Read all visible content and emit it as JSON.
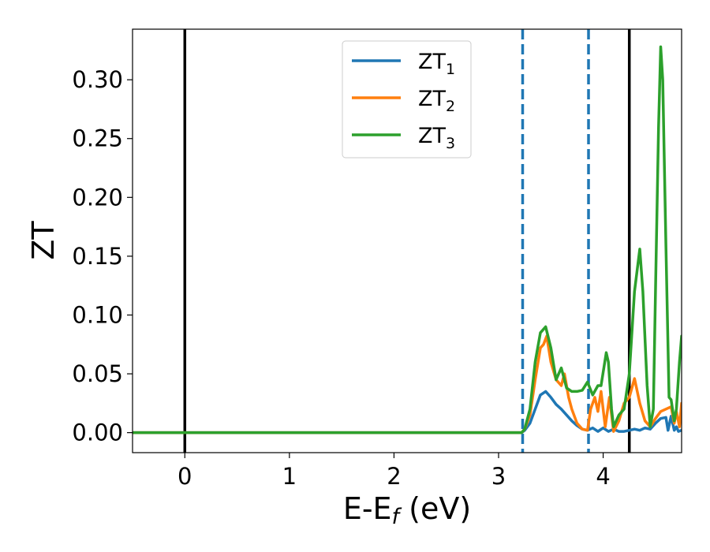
{
  "chart_data": {
    "type": "line",
    "title": "",
    "xlabel": {
      "base": "E-E",
      "sub": "f",
      "suffix": " (eV)"
    },
    "ylabel": "ZT",
    "xlim": [
      -0.5,
      4.75
    ],
    "ylim": [
      -0.017,
      0.343
    ],
    "xticks": [
      0,
      1,
      2,
      3,
      4
    ],
    "xtick_labels": [
      "0",
      "1",
      "2",
      "3",
      "4"
    ],
    "yticks": [
      0.0,
      0.05,
      0.1,
      0.15,
      0.2,
      0.25,
      0.3
    ],
    "ytick_labels": [
      "0.00",
      "0.05",
      "0.10",
      "0.15",
      "0.20",
      "0.25",
      "0.30"
    ],
    "grid": false,
    "legend_position": "top-center",
    "vlines": [
      {
        "x": 0.0,
        "style": "solid",
        "color": "#000000"
      },
      {
        "x": 4.25,
        "style": "solid",
        "color": "#000000"
      },
      {
        "x": 3.23,
        "style": "dashed",
        "color": "#1f77b4"
      },
      {
        "x": 3.86,
        "style": "dashed",
        "color": "#1f77b4"
      }
    ],
    "series": [
      {
        "name": "ZT",
        "sub": "1",
        "color": "#1f77b4",
        "x": [
          -0.5,
          3.15,
          3.22,
          3.25,
          3.3,
          3.35,
          3.4,
          3.45,
          3.5,
          3.55,
          3.6,
          3.65,
          3.7,
          3.75,
          3.8,
          3.85,
          3.9,
          3.95,
          4.0,
          4.05,
          4.1,
          4.15,
          4.2,
          4.25,
          4.3,
          4.35,
          4.4,
          4.45,
          4.5,
          4.55,
          4.6,
          4.62,
          4.65,
          4.68,
          4.7,
          4.72,
          4.75
        ],
        "y": [
          0.0,
          0.0,
          0.0,
          0.002,
          0.008,
          0.02,
          0.032,
          0.035,
          0.03,
          0.024,
          0.02,
          0.015,
          0.01,
          0.006,
          0.003,
          0.002,
          0.004,
          0.001,
          0.004,
          0.001,
          0.003,
          0.001,
          0.001,
          0.002,
          0.003,
          0.002,
          0.004,
          0.003,
          0.008,
          0.012,
          0.013,
          0.002,
          0.014,
          0.002,
          0.005,
          0.001,
          0.002
        ]
      },
      {
        "name": "ZT",
        "sub": "2",
        "color": "#ff7f0e",
        "x": [
          -0.5,
          3.15,
          3.22,
          3.25,
          3.3,
          3.35,
          3.4,
          3.43,
          3.46,
          3.5,
          3.55,
          3.6,
          3.63,
          3.67,
          3.7,
          3.75,
          3.8,
          3.85,
          3.88,
          3.92,
          3.95,
          3.98,
          4.02,
          4.06,
          4.1,
          4.15,
          4.2,
          4.25,
          4.3,
          4.35,
          4.4,
          4.45,
          4.5,
          4.55,
          4.6,
          4.65,
          4.68,
          4.7,
          4.73,
          4.75
        ],
        "y": [
          0.0,
          0.0,
          0.0,
          0.003,
          0.015,
          0.045,
          0.072,
          0.075,
          0.082,
          0.06,
          0.045,
          0.04,
          0.05,
          0.03,
          0.02,
          0.008,
          0.003,
          0.002,
          0.02,
          0.03,
          0.018,
          0.035,
          0.005,
          0.03,
          0.001,
          0.01,
          0.025,
          0.03,
          0.046,
          0.025,
          0.01,
          0.005,
          0.012,
          0.018,
          0.02,
          0.022,
          0.008,
          0.018,
          0.005,
          0.025
        ]
      },
      {
        "name": "ZT",
        "sub": "3",
        "color": "#2ca02c",
        "x": [
          -0.5,
          3.1,
          3.22,
          3.25,
          3.3,
          3.35,
          3.4,
          3.45,
          3.5,
          3.55,
          3.6,
          3.65,
          3.7,
          3.75,
          3.8,
          3.85,
          3.9,
          3.95,
          3.98,
          4.03,
          4.05,
          4.08,
          4.1,
          4.15,
          4.2,
          4.25,
          4.3,
          4.35,
          4.38,
          4.42,
          4.45,
          4.48,
          4.5,
          4.53,
          4.55,
          4.57,
          4.6,
          4.63,
          4.65,
          4.68,
          4.7,
          4.73,
          4.75
        ],
        "y": [
          0.0,
          0.0,
          0.0,
          0.003,
          0.02,
          0.06,
          0.085,
          0.09,
          0.072,
          0.045,
          0.055,
          0.038,
          0.035,
          0.035,
          0.036,
          0.043,
          0.032,
          0.04,
          0.04,
          0.068,
          0.06,
          0.02,
          0.005,
          0.015,
          0.02,
          0.05,
          0.12,
          0.156,
          0.12,
          0.04,
          0.005,
          0.02,
          0.12,
          0.26,
          0.328,
          0.3,
          0.16,
          0.03,
          0.028,
          0.01,
          0.02,
          0.06,
          0.082
        ]
      }
    ]
  }
}
